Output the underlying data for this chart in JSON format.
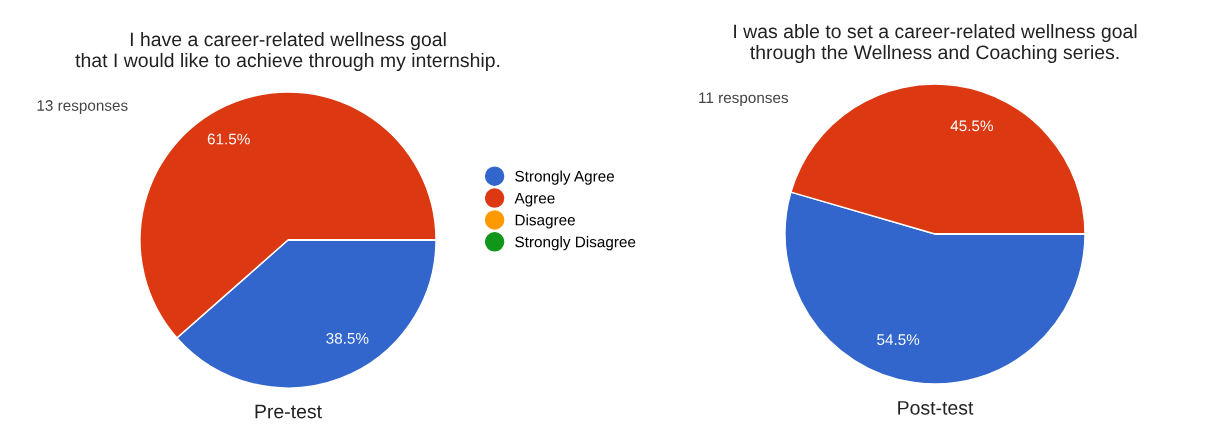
{
  "chart_data": [
    {
      "type": "pie",
      "title": "I have a career-related wellness goal\nthat I would like to achieve through my internship.",
      "subtitle": "13 responses",
      "categories": [
        "Strongly Agree",
        "Agree",
        "Disagree",
        "Strongly Disagree"
      ],
      "values": [
        38.5,
        61.5,
        0,
        0
      ],
      "colors": [
        "#3366cc",
        "#dc3912",
        "#ff9900",
        "#109618"
      ],
      "value_labels": [
        "38.5%",
        "61.5%",
        null,
        null
      ],
      "legend": "right",
      "annotations": [
        "Pre-test"
      ]
    },
    {
      "type": "pie",
      "title": "I was able to set a career-related wellness goal\nthrough the Wellness and Coaching series.",
      "subtitle": "11 responses",
      "categories": [
        null,
        null,
        null,
        null
      ],
      "values": [
        54.5,
        45.5,
        0,
        0
      ],
      "colors": [
        "#3366cc",
        "#dc3912",
        "#ff9900",
        "#109618"
      ],
      "value_labels": [
        "54.5%",
        "45.5%",
        null,
        null
      ],
      "annotations": [
        "Post-test"
      ]
    }
  ]
}
